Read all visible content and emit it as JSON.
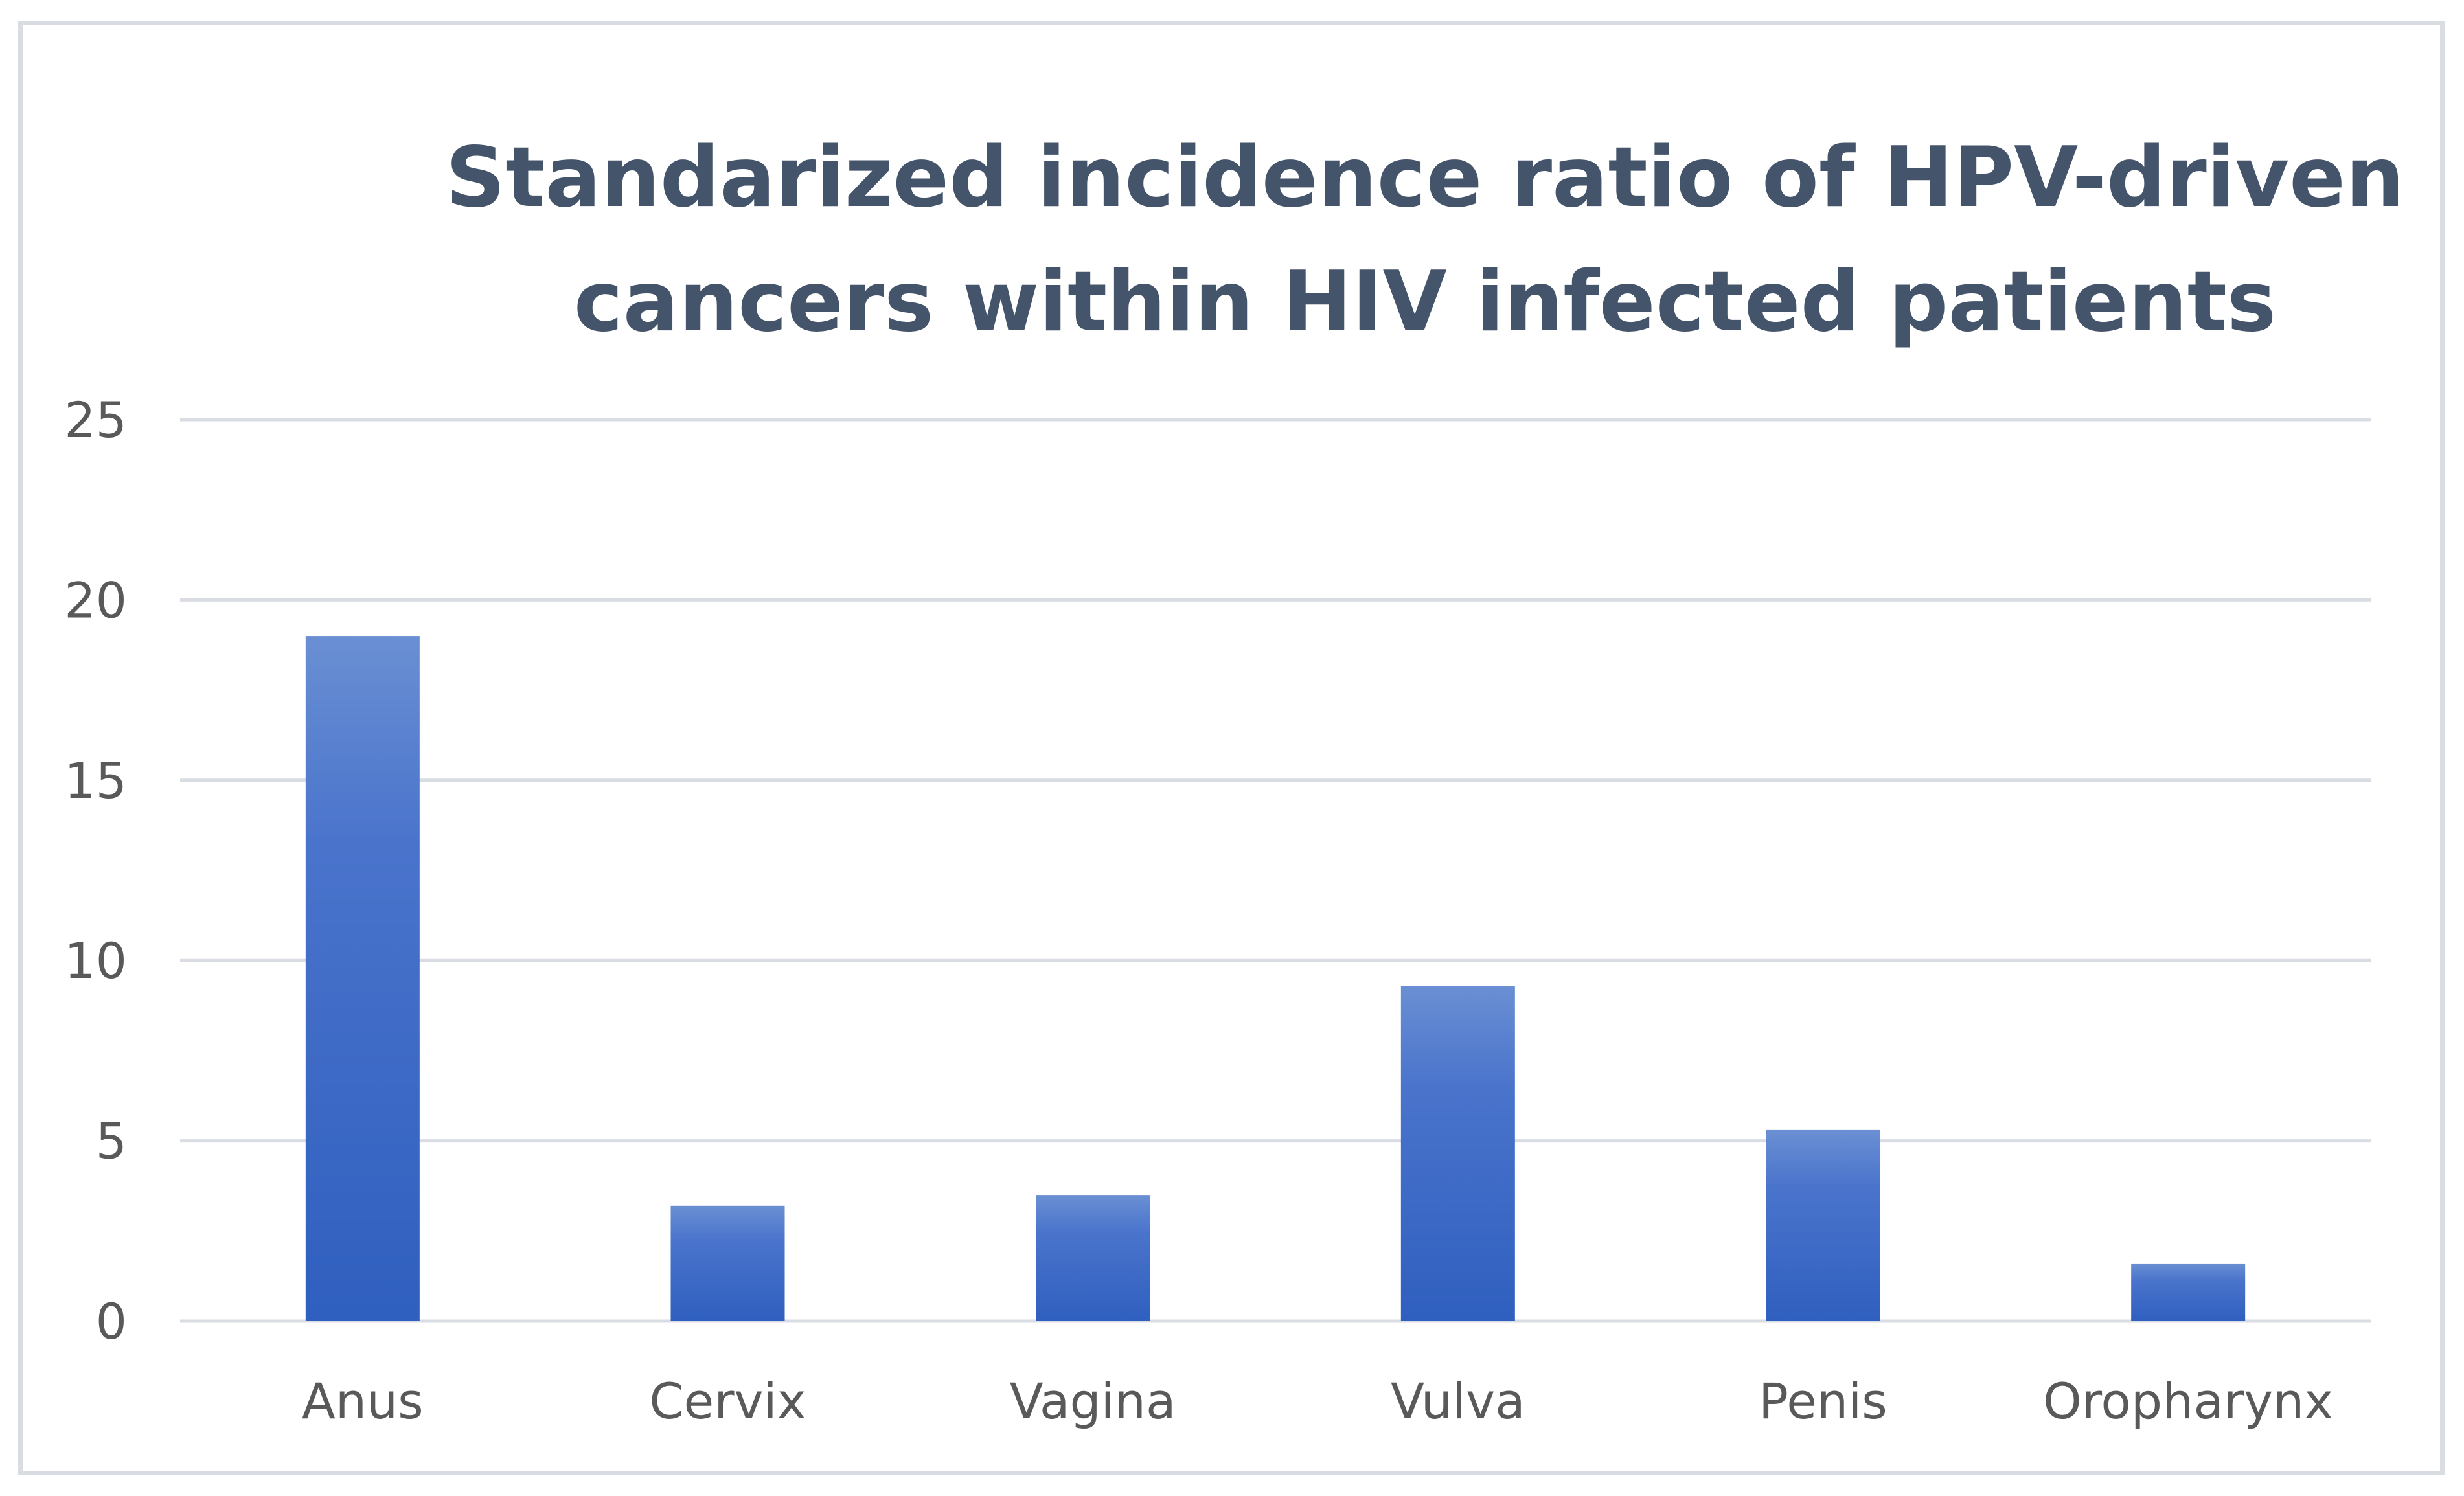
{
  "chart_data": {
    "type": "bar",
    "title_lines": [
      "Standarized incidence ratio of HPV-driven",
      "cancers within HIV infected patients"
    ],
    "categories": [
      "Anus",
      "Cervix",
      "Vagina",
      "Vulva",
      "Penis",
      "Oropharynx"
    ],
    "values": [
      19.0,
      3.2,
      3.5,
      9.3,
      5.3,
      1.6
    ],
    "ylim": [
      0,
      25
    ],
    "yticks": [
      0,
      5,
      10,
      15,
      20,
      25
    ],
    "grid": true,
    "legend": "none",
    "bar_color_top": "#6a8fd3",
    "bar_color_bottom": "#2f5fbf",
    "title_color": "#44546a",
    "gridline_color": "#d9dde3",
    "label_color": "#595959"
  }
}
